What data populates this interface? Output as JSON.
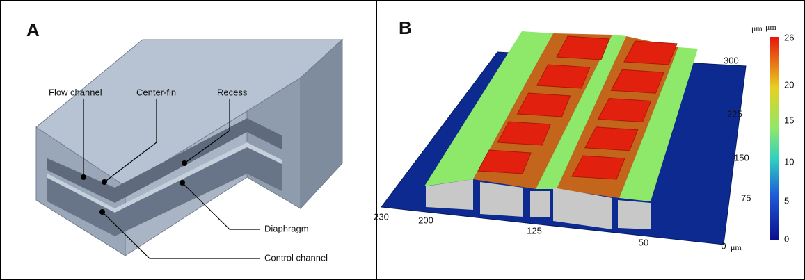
{
  "panel_a": {
    "letter": "A",
    "labels": [
      "Flow channel",
      "Center-fin",
      "Recess",
      "Diaphragm",
      "Control channel"
    ]
  },
  "panel_b": {
    "letter": "B",
    "x_ticks": [
      "230",
      "200",
      "125",
      "50",
      "0"
    ],
    "x_unit": "μm",
    "y_ticks": [
      "300",
      "225",
      "150",
      "75"
    ],
    "y_unit": "μm",
    "colorbar_ticks": [
      "26",
      "20",
      "15",
      "10",
      "5",
      "0"
    ],
    "colorbar_unit": "μm"
  }
}
